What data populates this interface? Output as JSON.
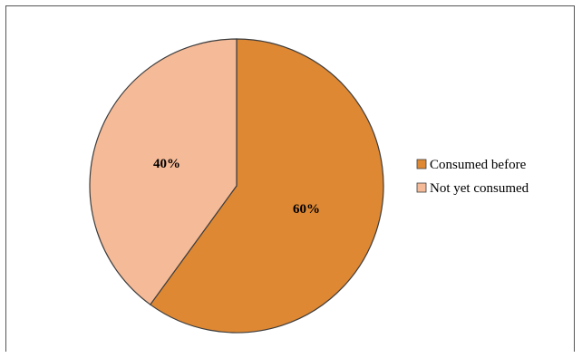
{
  "chart_data": {
    "type": "pie",
    "title": "",
    "slices": [
      {
        "label": "Consumed before",
        "value": 60,
        "value_label": "60%",
        "color": "#DE8834"
      },
      {
        "label": "Not yet consumed",
        "value": 40,
        "value_label": "40%",
        "color": "#F5BA97"
      }
    ],
    "start_angle": "12 o'clock",
    "direction": "clockwise",
    "legend_position": "right"
  }
}
